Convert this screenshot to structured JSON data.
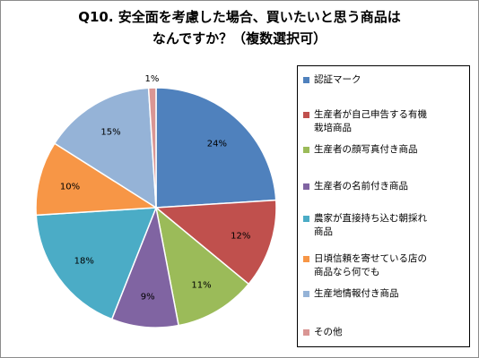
{
  "chart_data": {
    "type": "pie",
    "title": "Q10. 安全面を考慮した場合、買いたいと思う商品は",
    "subtitle": "なんですか？（複数選択可）",
    "legend_position": "right",
    "slices": [
      {
        "label": "認証マーク",
        "value": 24,
        "data_label": "24%",
        "color": "#4F81BD"
      },
      {
        "label": "生産者が自己申告する有機栽培商品",
        "value": 12,
        "data_label": "12%",
        "color": "#C0504D"
      },
      {
        "label": "生産者の顔写真付き商品",
        "value": 11,
        "data_label": "11%",
        "color": "#9BBB59"
      },
      {
        "label": "生産者の名前付き商品",
        "value": 9,
        "data_label": "9%",
        "color": "#8064A2"
      },
      {
        "label": "農家が直接持ち込む朝採れ商品",
        "value": 18,
        "data_label": "18%",
        "color": "#4BACC6"
      },
      {
        "label": "日頃信頼を寄せている店の商品なら何でも",
        "value": 10,
        "data_label": "10%",
        "color": "#F79646"
      },
      {
        "label": "生産地情報付き商品",
        "value": 15,
        "data_label": "15%",
        "color": "#95B3D7"
      },
      {
        "label": "その他",
        "value": 1,
        "data_label": "1%",
        "color": "#DA9694"
      }
    ],
    "legend": [
      {
        "lines": [
          "認証マーク"
        ]
      },
      {
        "lines": [
          "生産者が自己申告する有機",
          "栽培商品"
        ]
      },
      {
        "lines": [
          "生産者の顔写真付き商品"
        ]
      },
      {
        "lines": [
          "生産者の名前付き商品"
        ]
      },
      {
        "lines": [
          "農家が直接持ち込む朝採れ",
          "商品"
        ]
      },
      {
        "lines": [
          "日頃信頼を寄せている店の",
          "商品なら何でも"
        ]
      },
      {
        "lines": [
          "生産地情報付き商品"
        ]
      },
      {
        "lines": [
          "その他"
        ]
      }
    ]
  }
}
